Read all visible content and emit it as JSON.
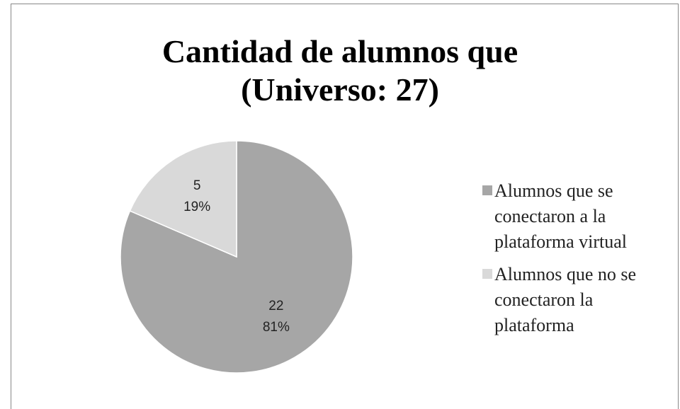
{
  "chart_data": {
    "type": "pie",
    "title": [
      "Cantidad de alumnos que",
      "(Universo: 27)"
    ],
    "categories": [
      "Alumnos que se conectaron a la plataforma virtual",
      "Alumnos que no se conectaron la plataforma"
    ],
    "values": [
      22,
      5
    ],
    "percentages": [
      81,
      19
    ],
    "percent_labels": [
      "81%",
      "19%"
    ],
    "colors": [
      "#a6a6a6",
      "#d9d9d9"
    ],
    "legend": "right"
  }
}
